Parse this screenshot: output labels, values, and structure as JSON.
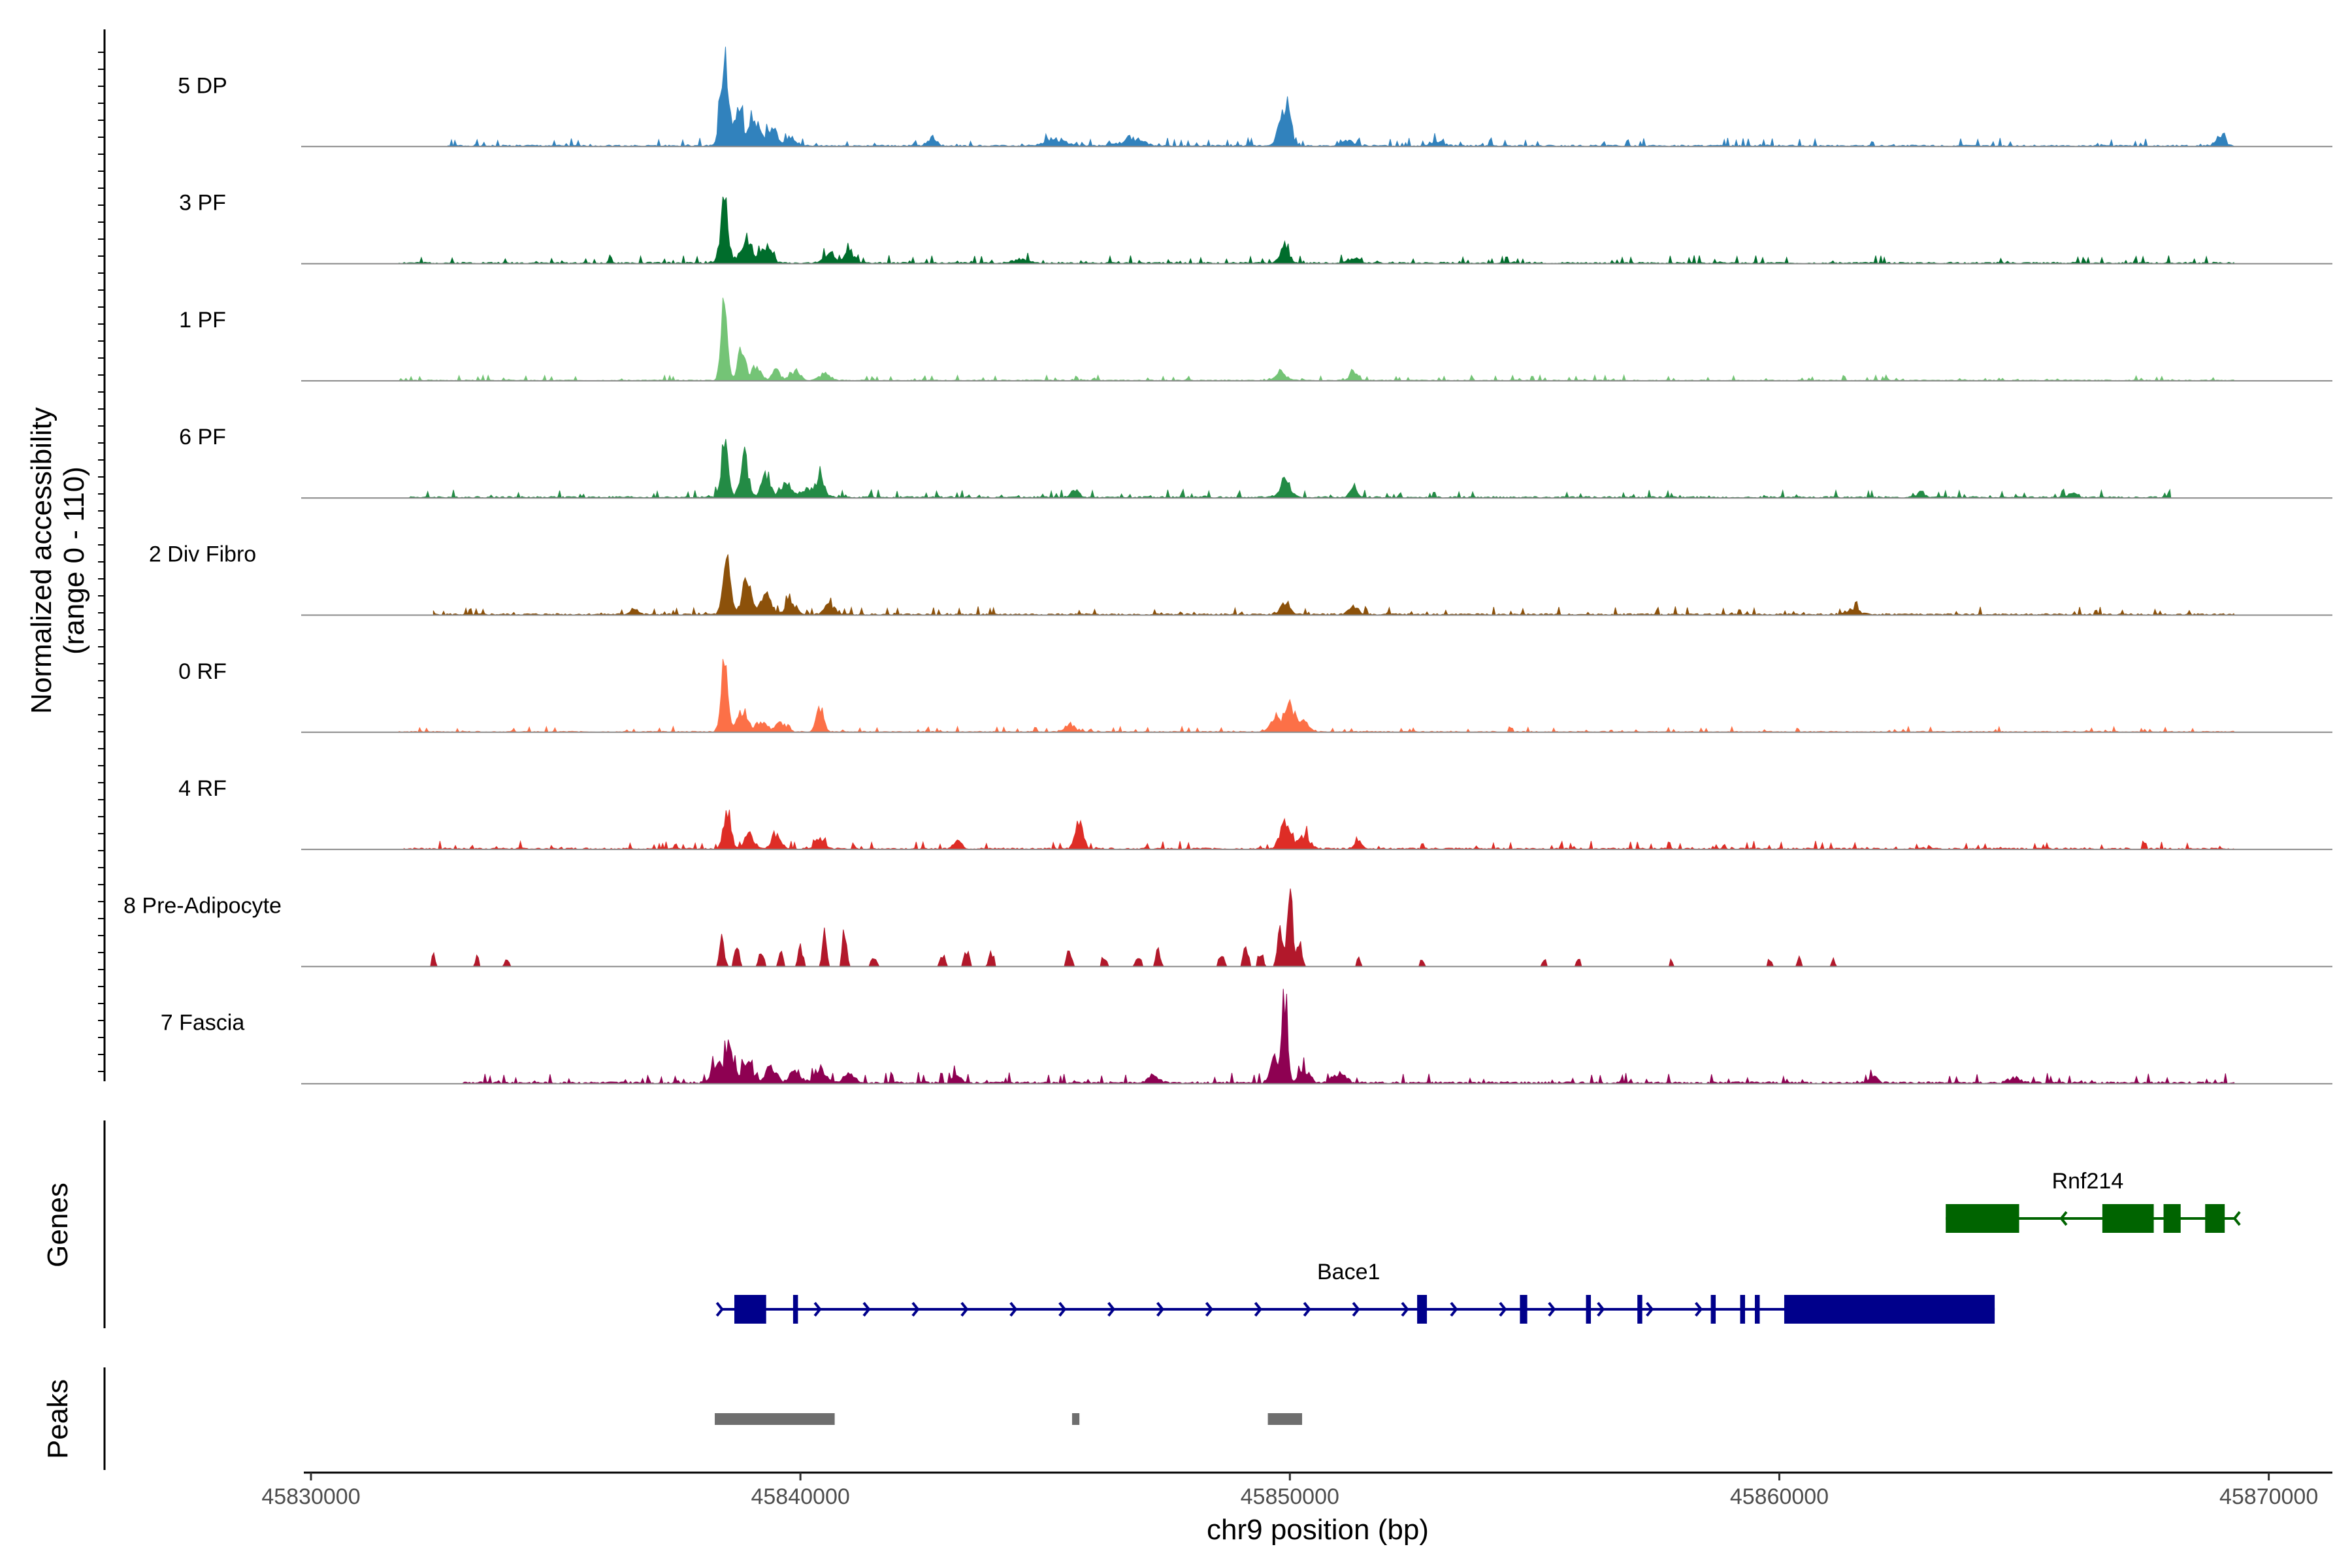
{
  "chart_data": {
    "type": "area",
    "title": "",
    "xlabel": "chr9 position (bp)",
    "ylabel_line1": "Normalized accessibility",
    "ylabel_line2": "(range 0 - 110)",
    "ylim": [
      0,
      110
    ],
    "xlim": [
      45829800,
      45871300
    ],
    "x_ticks": [
      45830000,
      45840000,
      45850000,
      45860000,
      45870000
    ],
    "x_tick_labels": [
      "45830000",
      "45840000",
      "45850000",
      "45860000",
      "45870000"
    ],
    "genes_panel_label": "Genes",
    "peaks_panel_label": "Peaks",
    "series": [
      {
        "name": "5 DP",
        "color": "#3182bd",
        "start": 45832800,
        "end": 45869300,
        "base": 3,
        "peaks": [
          [
            45838450,
            100,
            120
          ],
          [
            45838750,
            45,
            100
          ],
          [
            45839050,
            30,
            150
          ],
          [
            45839400,
            18,
            150
          ],
          [
            45839800,
            10,
            150
          ],
          [
            45842700,
            12,
            100
          ],
          [
            45845200,
            8,
            300
          ],
          [
            45846800,
            8,
            300
          ],
          [
            45849800,
            18,
            130
          ],
          [
            45849950,
            45,
            110
          ],
          [
            45851200,
            6,
            150
          ],
          [
            45853000,
            5,
            200
          ],
          [
            45869000,
            8,
            150
          ]
        ]
      },
      {
        "name": "3 PF",
        "color": "#006d2c",
        "start": 45831800,
        "end": 45869300,
        "base": 3,
        "peaks": [
          [
            45838450,
            70,
            110
          ],
          [
            45838900,
            30,
            150
          ],
          [
            45839300,
            20,
            150
          ],
          [
            45840600,
            12,
            150
          ],
          [
            45841000,
            15,
            120
          ],
          [
            45844500,
            5,
            200
          ],
          [
            45849900,
            18,
            130
          ],
          [
            45851300,
            6,
            150
          ]
        ]
      },
      {
        "name": "1 PF",
        "color": "#74c476",
        "start": 45831800,
        "end": 45869300,
        "base": 2,
        "peaks": [
          [
            45838450,
            100,
            90
          ],
          [
            45838800,
            35,
            110
          ],
          [
            45839100,
            18,
            120
          ],
          [
            45839500,
            12,
            120
          ],
          [
            45839900,
            10,
            140
          ],
          [
            45840500,
            8,
            150
          ],
          [
            45849800,
            10,
            150
          ],
          [
            45851300,
            12,
            100
          ]
        ]
      },
      {
        "name": "6 PF",
        "color": "#238b45",
        "start": 45832000,
        "end": 45868000,
        "base": 3,
        "peaks": [
          [
            45838450,
            55,
            110
          ],
          [
            45838850,
            48,
            110
          ],
          [
            45839300,
            25,
            130
          ],
          [
            45839700,
            18,
            130
          ],
          [
            45840400,
            22,
            130
          ],
          [
            45840100,
            10,
            150
          ],
          [
            45845600,
            8,
            120
          ],
          [
            45849900,
            20,
            150
          ],
          [
            45851300,
            10,
            100
          ],
          [
            45862900,
            6,
            100
          ],
          [
            45866000,
            5,
            120
          ]
        ]
      },
      {
        "name": "2 Div Fibro",
        "color": "#8c510a",
        "start": 45832500,
        "end": 45869300,
        "base": 3,
        "peaks": [
          [
            45838500,
            55,
            110
          ],
          [
            45838900,
            40,
            130
          ],
          [
            45839300,
            22,
            150
          ],
          [
            45839800,
            15,
            150
          ],
          [
            45840600,
            12,
            150
          ],
          [
            45849900,
            12,
            150
          ],
          [
            45851300,
            10,
            130
          ],
          [
            45861500,
            6,
            200
          ],
          [
            45836600,
            8,
            100
          ]
        ]
      },
      {
        "name": "0 RF",
        "color": "#fc7047",
        "start": 45831800,
        "end": 45869300,
        "base": 2,
        "peaks": [
          [
            45838450,
            75,
            100
          ],
          [
            45838800,
            25,
            150
          ],
          [
            45839200,
            12,
            150
          ],
          [
            45839600,
            10,
            150
          ],
          [
            45840400,
            28,
            100
          ],
          [
            45845500,
            10,
            130
          ],
          [
            45849700,
            18,
            150
          ],
          [
            45850000,
            28,
            130
          ],
          [
            45850300,
            12,
            150
          ]
        ]
      },
      {
        "name": "4 RF",
        "color": "#de2d26",
        "start": 45831900,
        "end": 45869300,
        "base": 3,
        "peaks": [
          [
            45838500,
            40,
            110
          ],
          [
            45838950,
            20,
            130
          ],
          [
            45839500,
            18,
            130
          ],
          [
            45840400,
            12,
            130
          ],
          [
            45843200,
            10,
            120
          ],
          [
            45845700,
            35,
            110
          ],
          [
            45849900,
            28,
            150
          ],
          [
            45850300,
            15,
            150
          ],
          [
            45851400,
            8,
            120
          ]
        ]
      },
      {
        "name": "8 Pre-Adipocyte",
        "color": "#b2182b",
        "start": 45832300,
        "end": 45861200,
        "base": 0,
        "sparse": true,
        "peaks": [
          [
            45832500,
            15,
            50
          ],
          [
            45833400,
            12,
            50
          ],
          [
            45834000,
            8,
            70
          ],
          [
            45838400,
            35,
            70
          ],
          [
            45838700,
            25,
            70
          ],
          [
            45839200,
            20,
            70
          ],
          [
            45839600,
            15,
            70
          ],
          [
            45840000,
            22,
            70
          ],
          [
            45840500,
            45,
            60
          ],
          [
            45840900,
            40,
            60
          ],
          [
            45841500,
            10,
            90
          ],
          [
            45842900,
            15,
            70
          ],
          [
            45843400,
            20,
            70
          ],
          [
            45843900,
            18,
            70
          ],
          [
            45845500,
            22,
            70
          ],
          [
            45846200,
            12,
            70
          ],
          [
            45846900,
            15,
            70
          ],
          [
            45847300,
            20,
            70
          ],
          [
            45848600,
            15,
            70
          ],
          [
            45849100,
            25,
            70
          ],
          [
            45849400,
            18,
            70
          ],
          [
            45849800,
            45,
            70
          ],
          [
            45850000,
            90,
            70
          ],
          [
            45850200,
            35,
            70
          ],
          [
            45851400,
            10,
            50
          ],
          [
            45852700,
            10,
            50
          ],
          [
            45855200,
            8,
            60
          ],
          [
            45855900,
            12,
            50
          ],
          [
            45857800,
            8,
            60
          ],
          [
            45859800,
            10,
            50
          ],
          [
            45860400,
            12,
            50
          ],
          [
            45861100,
            8,
            50
          ]
        ]
      },
      {
        "name": "7 Fascia",
        "color": "#8e0152",
        "start": 45833100,
        "end": 45869300,
        "base": 4,
        "peaks": [
          [
            45838300,
            25,
            150
          ],
          [
            45838550,
            45,
            110
          ],
          [
            45838900,
            25,
            150
          ],
          [
            45839400,
            18,
            150
          ],
          [
            45839900,
            15,
            150
          ],
          [
            45840400,
            18,
            150
          ],
          [
            45841000,
            10,
            150
          ],
          [
            45843200,
            12,
            100
          ],
          [
            45849900,
            100,
            80
          ],
          [
            45849700,
            30,
            120
          ],
          [
            45850300,
            15,
            150
          ],
          [
            45851000,
            10,
            200
          ],
          [
            45847200,
            8,
            150
          ],
          [
            45861900,
            8,
            120
          ],
          [
            45864800,
            6,
            150
          ]
        ]
      }
    ],
    "genes": [
      {
        "name": "Rnf214",
        "strand": "-",
        "color": "#006400",
        "start": 45863400,
        "end": 45869300,
        "exons": [
          [
            45863400,
            45864900
          ],
          [
            45866600,
            45867650
          ],
          [
            45867850,
            45868200
          ],
          [
            45868700,
            45869100
          ]
        ]
      },
      {
        "name": "Bace1",
        "strand": "+",
        "color": "#00008b",
        "start": 45838400,
        "end": 45864400,
        "exons": [
          [
            45838650,
            45839300
          ],
          [
            45839850,
            45839950
          ],
          [
            45852600,
            45852800
          ],
          [
            45854700,
            45854850
          ],
          [
            45856050,
            45856150
          ],
          [
            45857100,
            45857200
          ],
          [
            45858600,
            45858700
          ],
          [
            45859200,
            45859300
          ],
          [
            45859500,
            45859600
          ],
          [
            45860100,
            45864400
          ]
        ]
      }
    ],
    "peaks": [
      [
        45838250,
        45840700
      ],
      [
        45845550,
        45845700
      ],
      [
        45849550,
        45850250
      ]
    ]
  }
}
